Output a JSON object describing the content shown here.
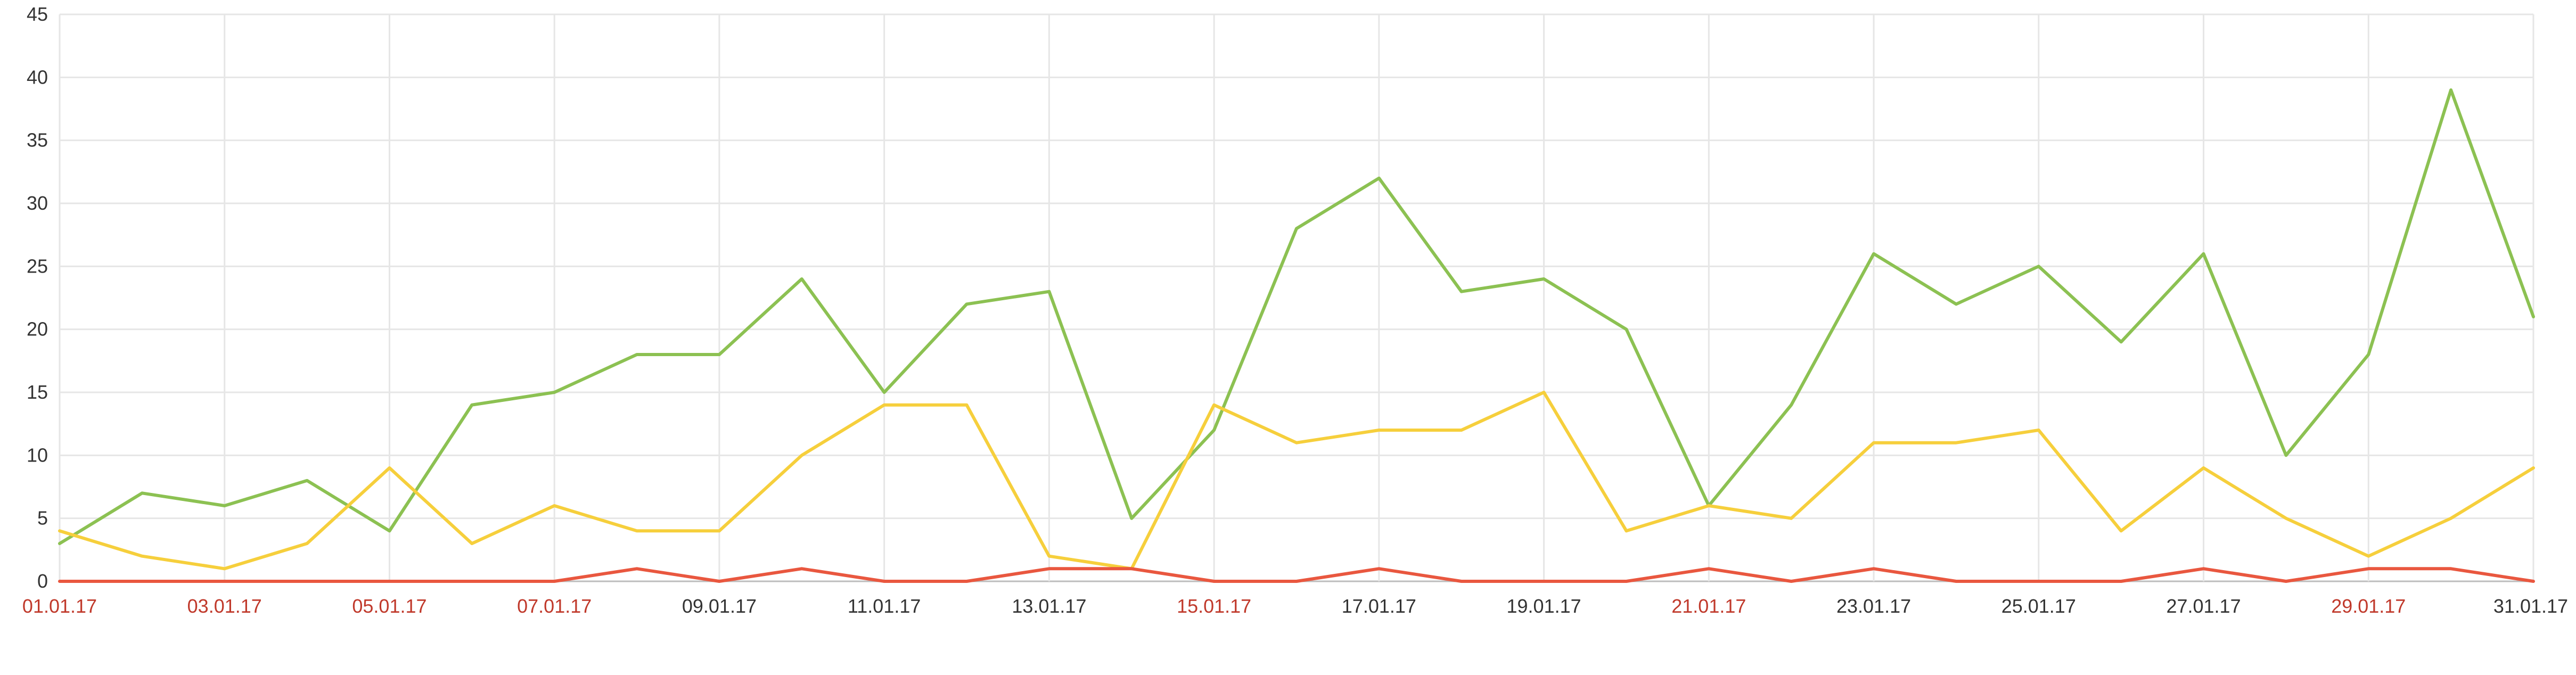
{
  "chart_data": {
    "type": "line",
    "title": "",
    "xlabel": "",
    "ylabel": "",
    "ylim": [
      0,
      45
    ],
    "yticks": [
      0,
      5,
      10,
      15,
      20,
      25,
      30,
      35,
      40,
      45
    ],
    "grid": true,
    "legend": "none",
    "x": [
      "01.01.17",
      "02.01.17",
      "03.01.17",
      "04.01.17",
      "05.01.17",
      "06.01.17",
      "07.01.17",
      "08.01.17",
      "09.01.17",
      "10.01.17",
      "11.01.17",
      "12.01.17",
      "13.01.17",
      "14.01.17",
      "15.01.17",
      "16.01.17",
      "17.01.17",
      "18.01.17",
      "19.01.17",
      "20.01.17",
      "21.01.17",
      "22.01.17",
      "23.01.17",
      "24.01.17",
      "25.01.17",
      "26.01.17",
      "27.01.17",
      "28.01.17",
      "29.01.17",
      "30.01.17",
      "31.01.17"
    ],
    "x_tick_labels": [
      {
        "label": "01.01.17",
        "color": "#c0392b"
      },
      {
        "label": "03.01.17",
        "color": "#c0392b"
      },
      {
        "label": "05.01.17",
        "color": "#c0392b"
      },
      {
        "label": "07.01.17",
        "color": "#c0392b"
      },
      {
        "label": "09.01.17",
        "color": "#333333"
      },
      {
        "label": "11.01.17",
        "color": "#333333"
      },
      {
        "label": "13.01.17",
        "color": "#333333"
      },
      {
        "label": "15.01.17",
        "color": "#c0392b"
      },
      {
        "label": "17.01.17",
        "color": "#333333"
      },
      {
        "label": "19.01.17",
        "color": "#333333"
      },
      {
        "label": "21.01.17",
        "color": "#c0392b"
      },
      {
        "label": "23.01.17",
        "color": "#333333"
      },
      {
        "label": "25.01.17",
        "color": "#333333"
      },
      {
        "label": "27.01.17",
        "color": "#333333"
      },
      {
        "label": "29.01.17",
        "color": "#c0392b"
      },
      {
        "label": "31.01.17",
        "color": "#333333"
      }
    ],
    "series": [
      {
        "color": "#8cc152",
        "values": [
          3,
          7,
          6,
          8,
          4,
          14,
          15,
          18,
          18,
          24,
          15,
          22,
          23,
          5,
          12,
          28,
          32,
          23,
          24,
          20,
          6,
          14,
          26,
          22,
          25,
          19,
          26,
          10,
          18,
          39,
          21
        ]
      },
      {
        "color": "#f6cf3c",
        "values": [
          4,
          2,
          1,
          3,
          9,
          3,
          6,
          4,
          4,
          10,
          14,
          14,
          2,
          1,
          14,
          11,
          12,
          12,
          15,
          4,
          6,
          5,
          11,
          11,
          12,
          4,
          9,
          5,
          2,
          5,
          9
        ]
      },
      {
        "color": "#e9573f",
        "values": [
          0,
          0,
          0,
          0,
          0,
          0,
          0,
          1,
          0,
          1,
          0,
          0,
          1,
          1,
          0,
          0,
          1,
          0,
          0,
          0,
          1,
          0,
          1,
          0,
          0,
          0,
          1,
          0,
          1,
          1,
          0
        ]
      }
    ]
  }
}
